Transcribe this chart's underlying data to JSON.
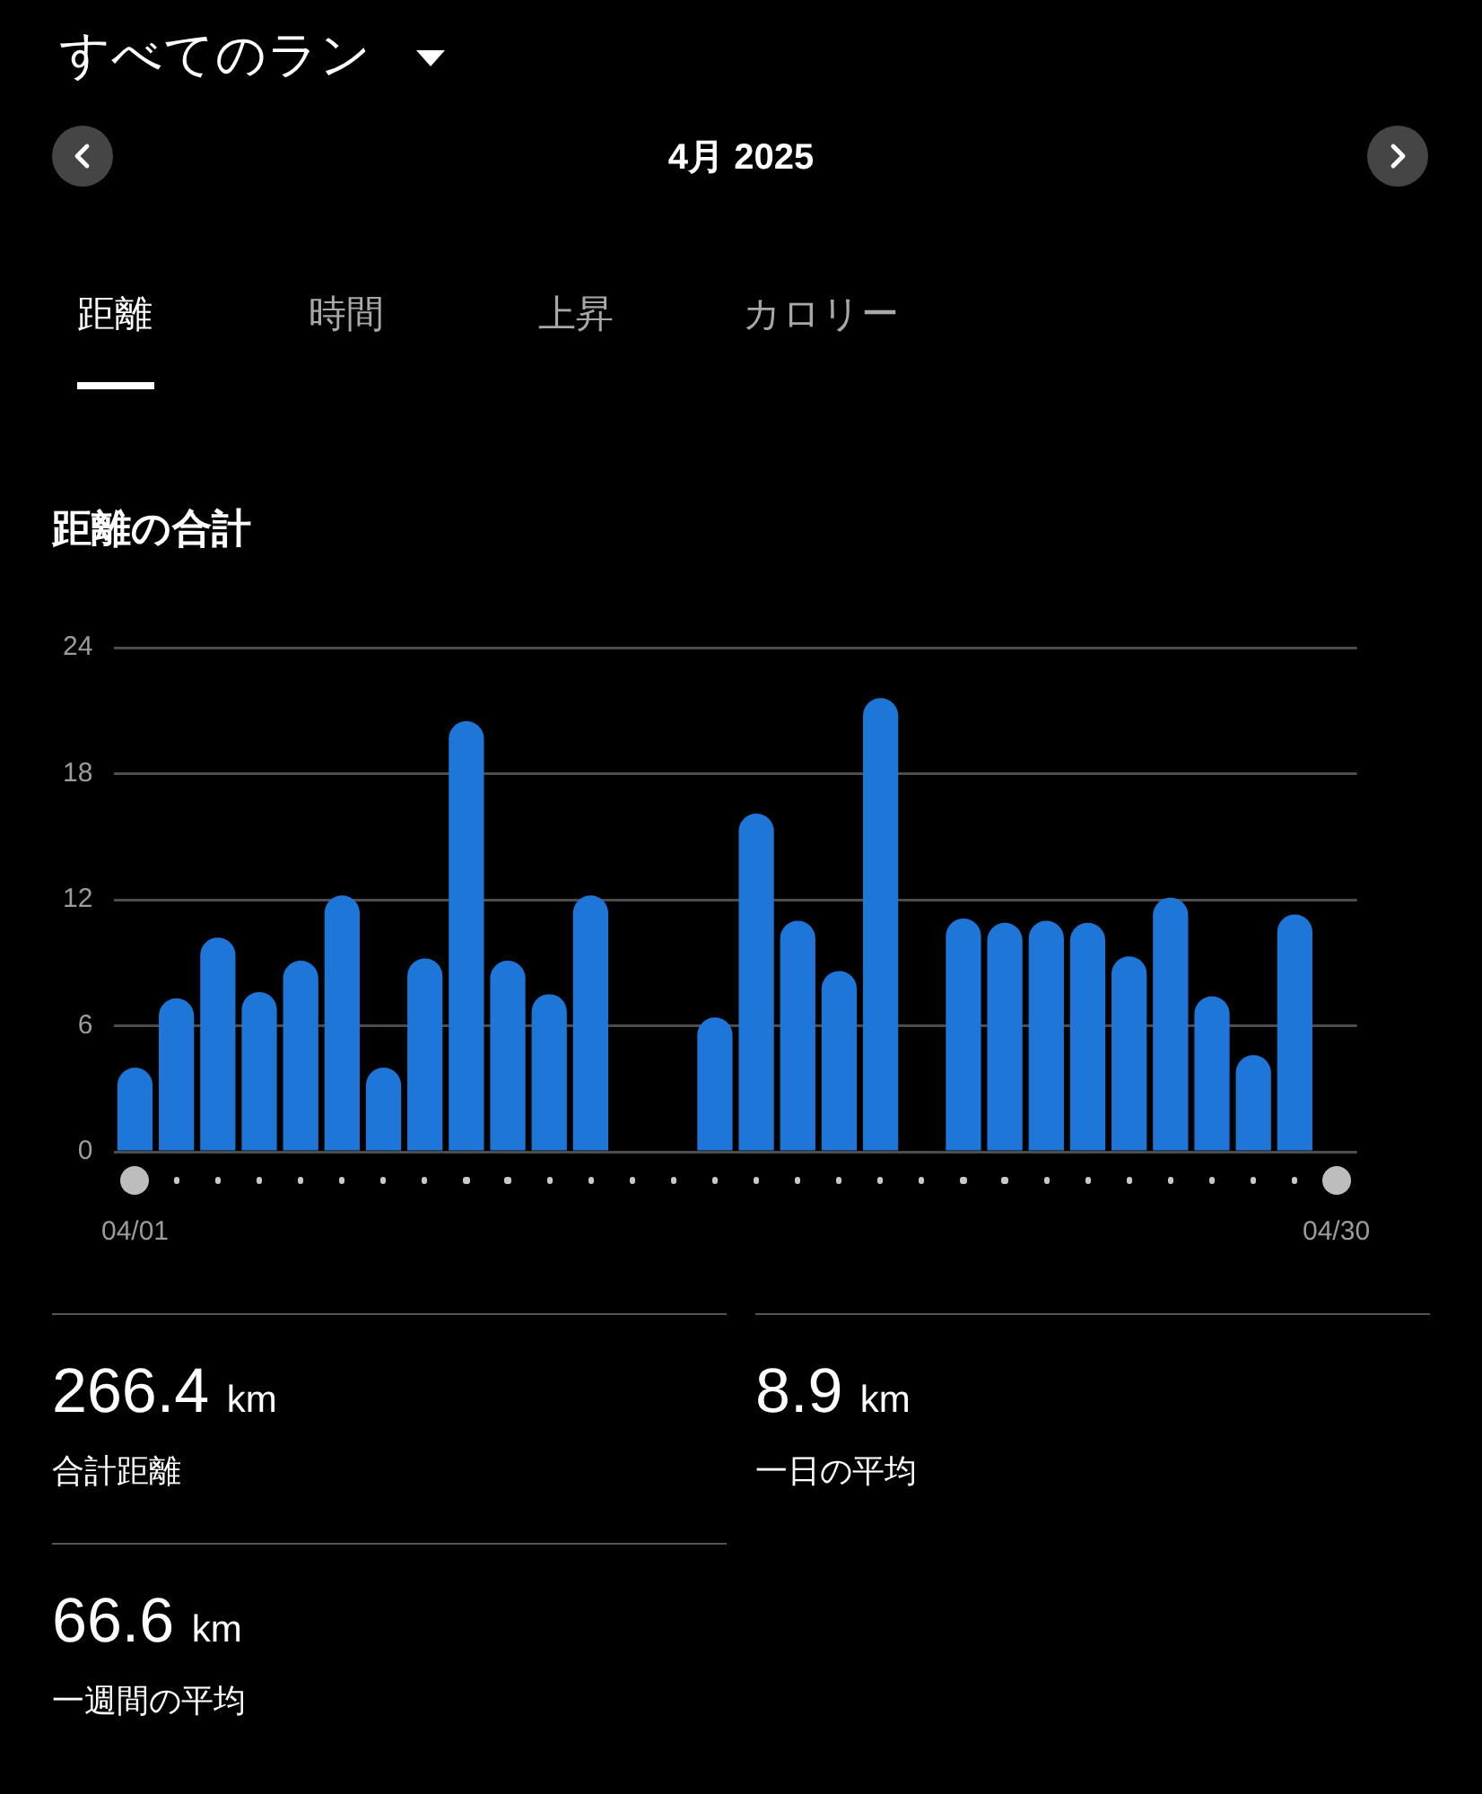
{
  "chart_data": {
    "type": "bar",
    "title": "距離の合計",
    "categories": [
      "04/01",
      null,
      null,
      null,
      null,
      null,
      null,
      null,
      null,
      null,
      null,
      null,
      null,
      null,
      null,
      null,
      null,
      null,
      null,
      null,
      null,
      null,
      null,
      null,
      null,
      null,
      null,
      null,
      null,
      "04/30"
    ],
    "values": [
      4.0,
      7.3,
      10.2,
      7.6,
      9.1,
      12.2,
      4.0,
      9.2,
      20.5,
      9.1,
      7.5,
      12.2,
      0,
      0,
      6.4,
      16.1,
      11.0,
      8.6,
      21.6,
      0,
      11.1,
      10.9,
      11.0,
      10.9,
      9.3,
      12.1,
      7.4,
      4.6,
      11.3,
      0
    ],
    "color": "#1e76d8",
    "ylim": [
      0,
      24
    ],
    "yticks": [
      0,
      6,
      12,
      18,
      24
    ],
    "grid": "y",
    "annotations": [
      "すべてのラン",
      "4月 2025",
      "距離",
      "時間",
      "上昇",
      "カロリー",
      "266.4 km",
      "合計距離",
      "8.9 km",
      "一日の平均",
      "66.6 km",
      "一週間の平均"
    ]
  }
}
